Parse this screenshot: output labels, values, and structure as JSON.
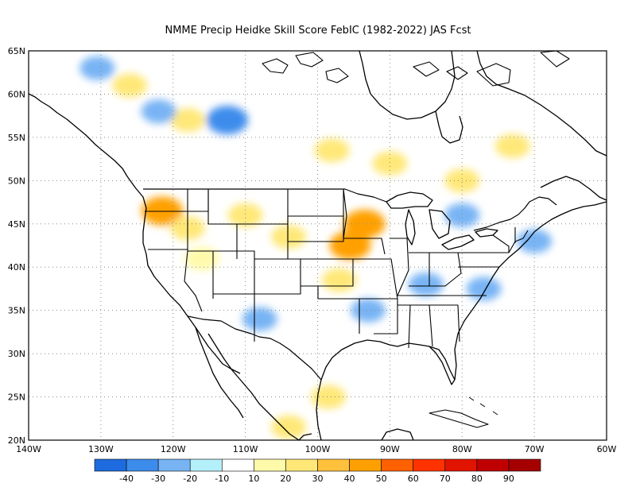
{
  "title": "NMME Precip Heidke Skill Score FebIC (1982-2022) JAS Fcst",
  "map": {
    "lon_range": [
      -140,
      -60
    ],
    "lat_range": [
      20,
      65
    ],
    "lon_ticks": [
      "140W",
      "130W",
      "120W",
      "110W",
      "100W",
      "90W",
      "80W",
      "70W",
      "60W"
    ],
    "lat_ticks": [
      "20N",
      "25N",
      "30N",
      "35N",
      "40N",
      "45N",
      "50N",
      "55N",
      "60N",
      "65N"
    ],
    "gridlines": "dotted"
  },
  "colorbar": {
    "labels": [
      "-40",
      "-30",
      "-20",
      "-10",
      "10",
      "20",
      "30",
      "40",
      "50",
      "60",
      "70",
      "80",
      "90"
    ],
    "colors": [
      "#1e6be0",
      "#3c8cec",
      "#78b4f4",
      "#b4f0fa",
      "#ffffff",
      "#fffaaa",
      "#ffe878",
      "#ffc03c",
      "#ffa000",
      "#ff6000",
      "#ff3200",
      "#e11400",
      "#c00000",
      "#a50000"
    ]
  },
  "anomalies": [
    {
      "lon": -121.5,
      "lat": 46.5,
      "level": 40
    },
    {
      "lon": -118,
      "lat": 44.5,
      "level": 20
    },
    {
      "lon": -110,
      "lat": 46,
      "level": 20
    },
    {
      "lon": -104,
      "lat": 43.5,
      "level": 20
    },
    {
      "lon": -93.5,
      "lat": 45,
      "level": 40
    },
    {
      "lon": -95.5,
      "lat": 42.5,
      "level": 40
    },
    {
      "lon": -97,
      "lat": 38.5,
      "level": 20
    },
    {
      "lon": -98,
      "lat": 53.5,
      "level": 20
    },
    {
      "lon": -90,
      "lat": 52,
      "level": 20
    },
    {
      "lon": -80,
      "lat": 50,
      "level": 20
    },
    {
      "lon": -73,
      "lat": 54,
      "level": 20
    },
    {
      "lon": -98.5,
      "lat": 25,
      "level": 20
    },
    {
      "lon": -104,
      "lat": 21.5,
      "level": 20
    },
    {
      "lon": -118,
      "lat": 57,
      "level": 20
    },
    {
      "lon": -126,
      "lat": 61,
      "level": 20
    },
    {
      "lon": -116,
      "lat": 41,
      "level": 10
    },
    {
      "lon": -112.5,
      "lat": 57,
      "level": -30
    },
    {
      "lon": -122,
      "lat": 58,
      "level": -20
    },
    {
      "lon": -108,
      "lat": 34,
      "level": -20
    },
    {
      "lon": -93,
      "lat": 35,
      "level": -20
    },
    {
      "lon": -85,
      "lat": 38,
      "level": -20
    },
    {
      "lon": -77,
      "lat": 37.5,
      "level": -20
    },
    {
      "lon": -70,
      "lat": 43,
      "level": -20
    },
    {
      "lon": -80,
      "lat": 46,
      "level": -20
    },
    {
      "lon": -130.5,
      "lat": 63,
      "level": -20
    }
  ]
}
